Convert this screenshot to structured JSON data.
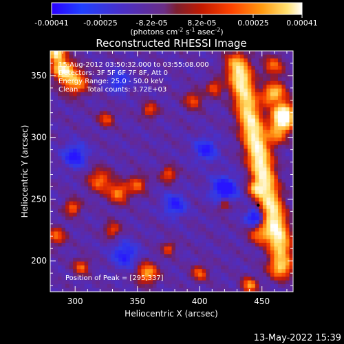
{
  "chart_data": {
    "type": "heatmap",
    "title": "Reconstructed RHESSI Image",
    "xlabel": "Heliocentric X (arcsec)",
    "ylabel": "Heliocentric Y (arcsec)",
    "xlim": [
      280,
      475
    ],
    "ylim": [
      175,
      370
    ],
    "x_ticks": [
      300,
      350,
      400,
      450
    ],
    "y_ticks": [
      200,
      250,
      300,
      350
    ],
    "colorbar": {
      "min": -0.00041,
      "max": 0.00041,
      "tick_values": [
        -0.00041,
        -0.00025,
        -8.2e-05,
        8.2e-05,
        0.00025,
        0.00041
      ],
      "tick_labels": [
        "-0.00041",
        "-0.00025",
        "-8.2e-05",
        "8.2e-05",
        "0.00025",
        "0.00041"
      ],
      "unit_parts": [
        "(photons cm",
        "-2",
        " s",
        "-1",
        " asec",
        "-2",
        ")"
      ]
    },
    "annotations": {
      "time_range": "15-Aug-2012 03:50:32.000 to 03:55:08.000",
      "detectors": "Detectors: 3F 5F 6F 7F 8F, Att 0",
      "energy": "Energy Range: 25.0 - 50.0 keV",
      "counts": "Clean    Total counts: 3.72E+03",
      "peak": "Position of Peak = [295,337]"
    },
    "peak": [
      295,
      337
    ],
    "grid": false,
    "colormap": "blue-purple-red-yellow-white"
  },
  "footer": {
    "timestamp": "13-May-2022 15:39"
  }
}
